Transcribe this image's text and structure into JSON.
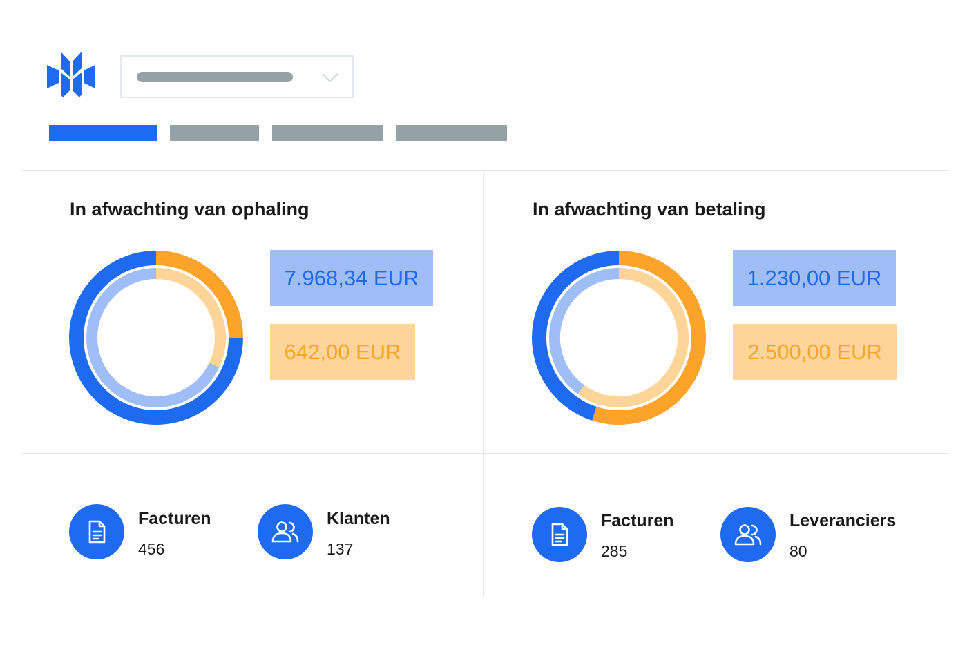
{
  "colors": {
    "primary_blue": "#1e6af0",
    "light_blue": "#9fbdf6",
    "primary_orange": "#fca329",
    "light_orange": "#fdd599",
    "gray": "#94a1a6",
    "divider": "#e3e9f1"
  },
  "header": {
    "logo_icon": "company-logo",
    "selector_icon": "chevron-down-icon",
    "tabs": [
      {
        "state": "active"
      },
      {
        "state": "inactive"
      },
      {
        "state": "inactive"
      },
      {
        "state": "inactive"
      }
    ]
  },
  "cards": [
    {
      "title": "In afwachting van ophaling",
      "amount_blue": "7.968,34 EUR",
      "amount_orange": "642,00 EUR",
      "stats": [
        {
          "icon": "document-icon",
          "label": "Facturen",
          "value": "456"
        },
        {
          "icon": "users-icon",
          "label": "Klanten",
          "value": "137"
        }
      ]
    },
    {
      "title": "In afwachting van betaling",
      "amount_blue": "1.230,00 EUR",
      "amount_orange": "2.500,00 EUR",
      "stats": [
        {
          "icon": "document-icon",
          "label": "Facturen",
          "value": "285"
        },
        {
          "icon": "users-icon",
          "label": "Leveranciers",
          "value": "80"
        }
      ]
    }
  ],
  "chart_data": [
    {
      "type": "pie",
      "variant": "double-ring-donut",
      "rings": [
        {
          "ring": "outer",
          "slices": [
            {
              "color": "#fca329",
              "fraction": 0.25
            },
            {
              "color": "#1e6af0",
              "fraction": 0.75
            }
          ]
        },
        {
          "ring": "inner",
          "slices": [
            {
              "color": "#fdd599",
              "fraction": 0.32
            },
            {
              "color": "#9fbdf6",
              "fraction": 0.68
            }
          ]
        }
      ]
    },
    {
      "type": "pie",
      "variant": "double-ring-donut",
      "rings": [
        {
          "ring": "outer",
          "slices": [
            {
              "color": "#fca329",
              "fraction": 0.55
            },
            {
              "color": "#1e6af0",
              "fraction": 0.45
            }
          ]
        },
        {
          "ring": "inner",
          "slices": [
            {
              "color": "#fdd599",
              "fraction": 0.6
            },
            {
              "color": "#9fbdf6",
              "fraction": 0.4
            }
          ]
        }
      ]
    }
  ]
}
